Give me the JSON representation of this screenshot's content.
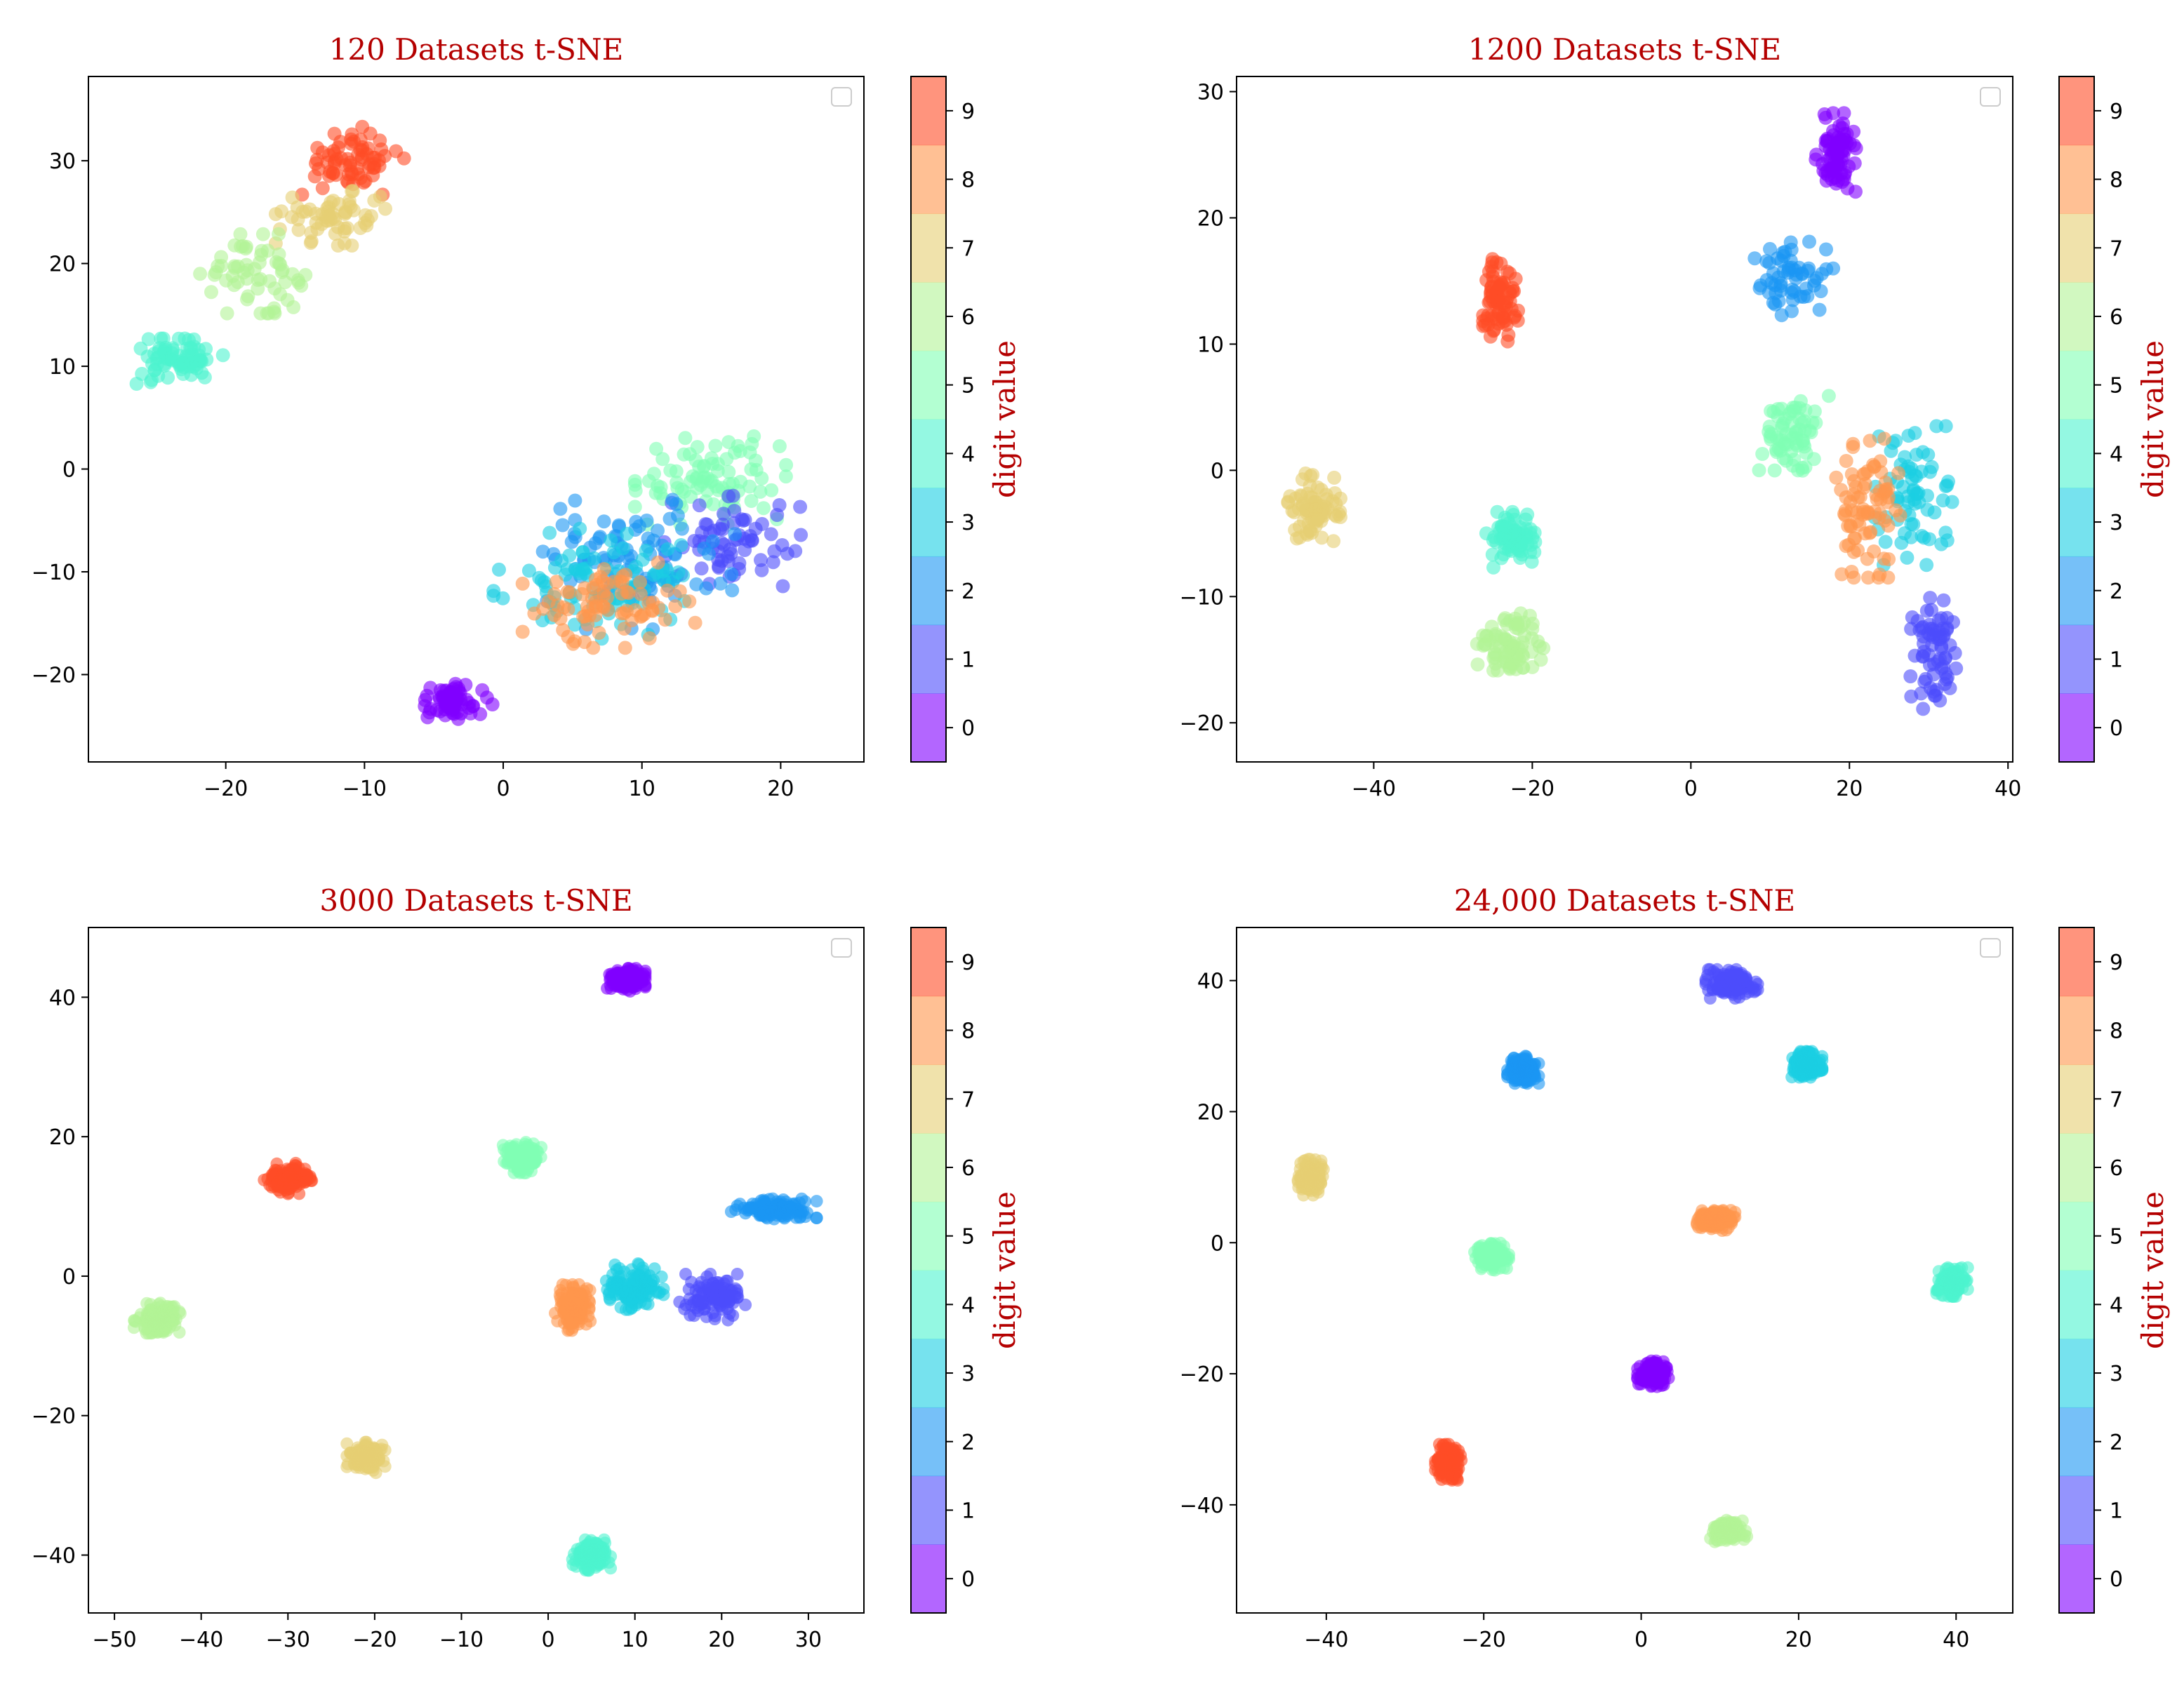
{
  "colors": {
    "digit_0": "#8000ff",
    "digit_1": "#4d4dfc",
    "digit_2": "#1a96f3",
    "digit_3": "#1acfe3",
    "digit_4": "#4df3ce",
    "digit_5": "#80ffb4",
    "digit_6": "#b3f396",
    "digit_7": "#e6cf73",
    "digit_8": "#ff964d",
    "digit_9": "#ff4d26",
    "title": "#b40000",
    "colorbar_label": "#b40000"
  },
  "chart_data": [
    {
      "type": "scatter",
      "title": "120 Datasets t-SNE",
      "xlabel": "",
      "ylabel": "",
      "xlim": [
        -29.9,
        26.0
      ],
      "ylim": [
        -28.5,
        38.2
      ],
      "xticks": [
        -20,
        -10,
        0,
        10,
        20
      ],
      "xtick_labels": [
        "−20",
        "−10",
        "0",
        "10",
        "20"
      ],
      "yticks": [
        -20,
        -10,
        0,
        10,
        20,
        30
      ],
      "ytick_labels": [
        "−20",
        "−10",
        "0",
        "10",
        "20",
        "30"
      ],
      "legend": "top-right (empty)",
      "colorbar": {
        "label": "digit value",
        "ticks": [
          "0",
          "1",
          "2",
          "3",
          "4",
          "5",
          "6",
          "7",
          "8",
          "9"
        ]
      },
      "clusters": [
        {
          "digit": 9,
          "center": [
            -11,
            30
          ],
          "spread": [
            3.5,
            3
          ],
          "n": 70
        },
        {
          "digit": 7,
          "center": [
            -12,
            24.5
          ],
          "spread": [
            4,
            2.5
          ],
          "n": 60
        },
        {
          "digit": 6,
          "center": [
            -18,
            19
          ],
          "spread": [
            3.5,
            3.5
          ],
          "n": 60
        },
        {
          "digit": 4,
          "center": [
            -23.5,
            10.5
          ],
          "spread": [
            3,
            2
          ],
          "n": 80
        },
        {
          "digit": 0,
          "center": [
            -3.5,
            -22.5
          ],
          "spread": [
            2.5,
            1.8
          ],
          "n": 60
        },
        {
          "digit": 5,
          "center": [
            15,
            -1
          ],
          "spread": [
            5,
            4
          ],
          "n": 90
        },
        {
          "digit": 1,
          "center": [
            16.5,
            -7
          ],
          "spread": [
            4.5,
            4
          ],
          "n": 70
        },
        {
          "digit": 2,
          "center": [
            9,
            -9
          ],
          "spread": [
            7,
            6
          ],
          "n": 100
        },
        {
          "digit": 3,
          "center": [
            7,
            -11
          ],
          "spread": [
            7,
            5
          ],
          "n": 90
        },
        {
          "digit": 8,
          "center": [
            8,
            -13
          ],
          "spread": [
            6,
            4
          ],
          "n": 80
        }
      ]
    },
    {
      "type": "scatter",
      "title": "1200 Datasets t-SNE",
      "xlabel": "",
      "ylabel": "",
      "xlim": [
        -57.3,
        40.6
      ],
      "ylim": [
        -23.1,
        31.2
      ],
      "xticks": [
        -40,
        -20,
        0,
        20,
        40
      ],
      "xtick_labels": [
        "−40",
        "−20",
        "0",
        "20",
        "40"
      ],
      "yticks": [
        -20,
        -10,
        0,
        10,
        20,
        30
      ],
      "ytick_labels": [
        "−20",
        "−10",
        "0",
        "10",
        "20",
        "30"
      ],
      "legend": "top-right (empty)",
      "colorbar": {
        "label": "digit value",
        "ticks": [
          "0",
          "1",
          "2",
          "3",
          "4",
          "5",
          "6",
          "7",
          "8",
          "9"
        ]
      },
      "clusters": [
        {
          "digit": 0,
          "center": [
            18.5,
            25
          ],
          "spread": [
            2.5,
            3
          ],
          "n": 80
        },
        {
          "digit": 2,
          "center": [
            13,
            15
          ],
          "spread": [
            4.5,
            3
          ],
          "n": 60
        },
        {
          "digit": 9,
          "center": [
            -24,
            13.5
          ],
          "spread": [
            2,
            3.5
          ],
          "n": 80
        },
        {
          "digit": 7,
          "center": [
            -47.5,
            -3
          ],
          "spread": [
            3,
            2.5
          ],
          "n": 80
        },
        {
          "digit": 4,
          "center": [
            -22.5,
            -5.5
          ],
          "spread": [
            3,
            2
          ],
          "n": 80
        },
        {
          "digit": 6,
          "center": [
            -23,
            -14
          ],
          "spread": [
            4,
            2.5
          ],
          "n": 80
        },
        {
          "digit": 5,
          "center": [
            13,
            3
          ],
          "spread": [
            4,
            3
          ],
          "n": 70
        },
        {
          "digit": 3,
          "center": [
            28,
            -2
          ],
          "spread": [
            4.5,
            5
          ],
          "n": 70
        },
        {
          "digit": 8,
          "center": [
            22,
            -3
          ],
          "spread": [
            4,
            5
          ],
          "n": 80
        },
        {
          "digit": 1,
          "center": [
            31,
            -14.5
          ],
          "spread": [
            3,
            4
          ],
          "n": 70
        }
      ]
    },
    {
      "type": "scatter",
      "title": "3000 Datasets t-SNE",
      "xlabel": "",
      "ylabel": "",
      "xlim": [
        -53.0,
        36.4
      ],
      "ylim": [
        -48.3,
        50.0
      ],
      "xticks": [
        -50,
        -40,
        -30,
        -20,
        -10,
        0,
        10,
        20,
        30
      ],
      "xtick_labels": [
        "−50",
        "−40",
        "−30",
        "−20",
        "−10",
        "0",
        "10",
        "20",
        "30"
      ],
      "yticks": [
        -40,
        -20,
        0,
        20,
        40
      ],
      "ytick_labels": [
        "−40",
        "−20",
        "0",
        "20",
        "40"
      ],
      "legend": "top-right (empty)",
      "colorbar": {
        "label": "digit value",
        "ticks": [
          "0",
          "1",
          "2",
          "3",
          "4",
          "5",
          "6",
          "7",
          "8",
          "9"
        ]
      },
      "clusters": [
        {
          "digit": 0,
          "center": [
            9,
            42.5
          ],
          "spread": [
            2,
            1.5
          ],
          "n": 150
        },
        {
          "digit": 9,
          "center": [
            -30,
            14
          ],
          "spread": [
            2.5,
            2
          ],
          "n": 150
        },
        {
          "digit": 5,
          "center": [
            -3,
            17
          ],
          "spread": [
            2,
            2
          ],
          "n": 150
        },
        {
          "digit": 6,
          "center": [
            -45,
            -6
          ],
          "spread": [
            2.5,
            2
          ],
          "n": 150
        },
        {
          "digit": 7,
          "center": [
            -21,
            -26
          ],
          "spread": [
            2,
            2
          ],
          "n": 150
        },
        {
          "digit": 4,
          "center": [
            5,
            -40
          ],
          "spread": [
            2,
            2
          ],
          "n": 150
        },
        {
          "digit": 8,
          "center": [
            3,
            -4.5
          ],
          "spread": [
            2,
            3
          ],
          "n": 130
        },
        {
          "digit": 3,
          "center": [
            10,
            -1.5
          ],
          "spread": [
            3,
            3
          ],
          "n": 130
        },
        {
          "digit": 1,
          "center": [
            19,
            -3
          ],
          "spread": [
            3.5,
            3
          ],
          "n": 120
        },
        {
          "digit": 2,
          "center": [
            26,
            9.5
          ],
          "spread": [
            4.5,
            1.5
          ],
          "n": 120
        }
      ]
    },
    {
      "type": "scatter",
      "title": "24,000 Datasets t-SNE",
      "xlabel": "",
      "ylabel": "",
      "xlim": [
        -51.4,
        47.2
      ],
      "ylim": [
        -56.5,
        48.1
      ],
      "xticks": [
        -40,
        -20,
        0,
        20,
        40
      ],
      "xtick_labels": [
        "−40",
        "−20",
        "0",
        "20",
        "40"
      ],
      "yticks": [
        -40,
        -20,
        0,
        20,
        40
      ],
      "ytick_labels": [
        "−40",
        "−20",
        "0",
        "20",
        "40"
      ],
      "legend": "top-right (empty)",
      "colorbar": {
        "label": "digit value",
        "ticks": [
          "0",
          "1",
          "2",
          "3",
          "4",
          "5",
          "6",
          "7",
          "8",
          "9"
        ]
      },
      "clusters": [
        {
          "digit": 1,
          "center": [
            11.5,
            39.5
          ],
          "spread": [
            3,
            2
          ],
          "n": 150
        },
        {
          "digit": 2,
          "center": [
            -15,
            26.5
          ],
          "spread": [
            1.8,
            2
          ],
          "n": 150
        },
        {
          "digit": 3,
          "center": [
            21,
            27
          ],
          "spread": [
            1.8,
            2
          ],
          "n": 150
        },
        {
          "digit": 7,
          "center": [
            -42,
            10
          ],
          "spread": [
            1.5,
            2.5
          ],
          "n": 150
        },
        {
          "digit": 8,
          "center": [
            9.5,
            3.5
          ],
          "spread": [
            2.2,
            1.5
          ],
          "n": 150
        },
        {
          "digit": 5,
          "center": [
            -19,
            -2
          ],
          "spread": [
            2,
            2
          ],
          "n": 150
        },
        {
          "digit": 4,
          "center": [
            39.5,
            -6
          ],
          "spread": [
            1.8,
            2
          ],
          "n": 150
        },
        {
          "digit": 0,
          "center": [
            1.5,
            -20
          ],
          "spread": [
            1.8,
            1.8
          ],
          "n": 150
        },
        {
          "digit": 9,
          "center": [
            -24.5,
            -33.5
          ],
          "spread": [
            1.5,
            2.5
          ],
          "n": 150
        },
        {
          "digit": 6,
          "center": [
            11,
            -44
          ],
          "spread": [
            2.2,
            1.5
          ],
          "n": 150
        }
      ]
    }
  ]
}
